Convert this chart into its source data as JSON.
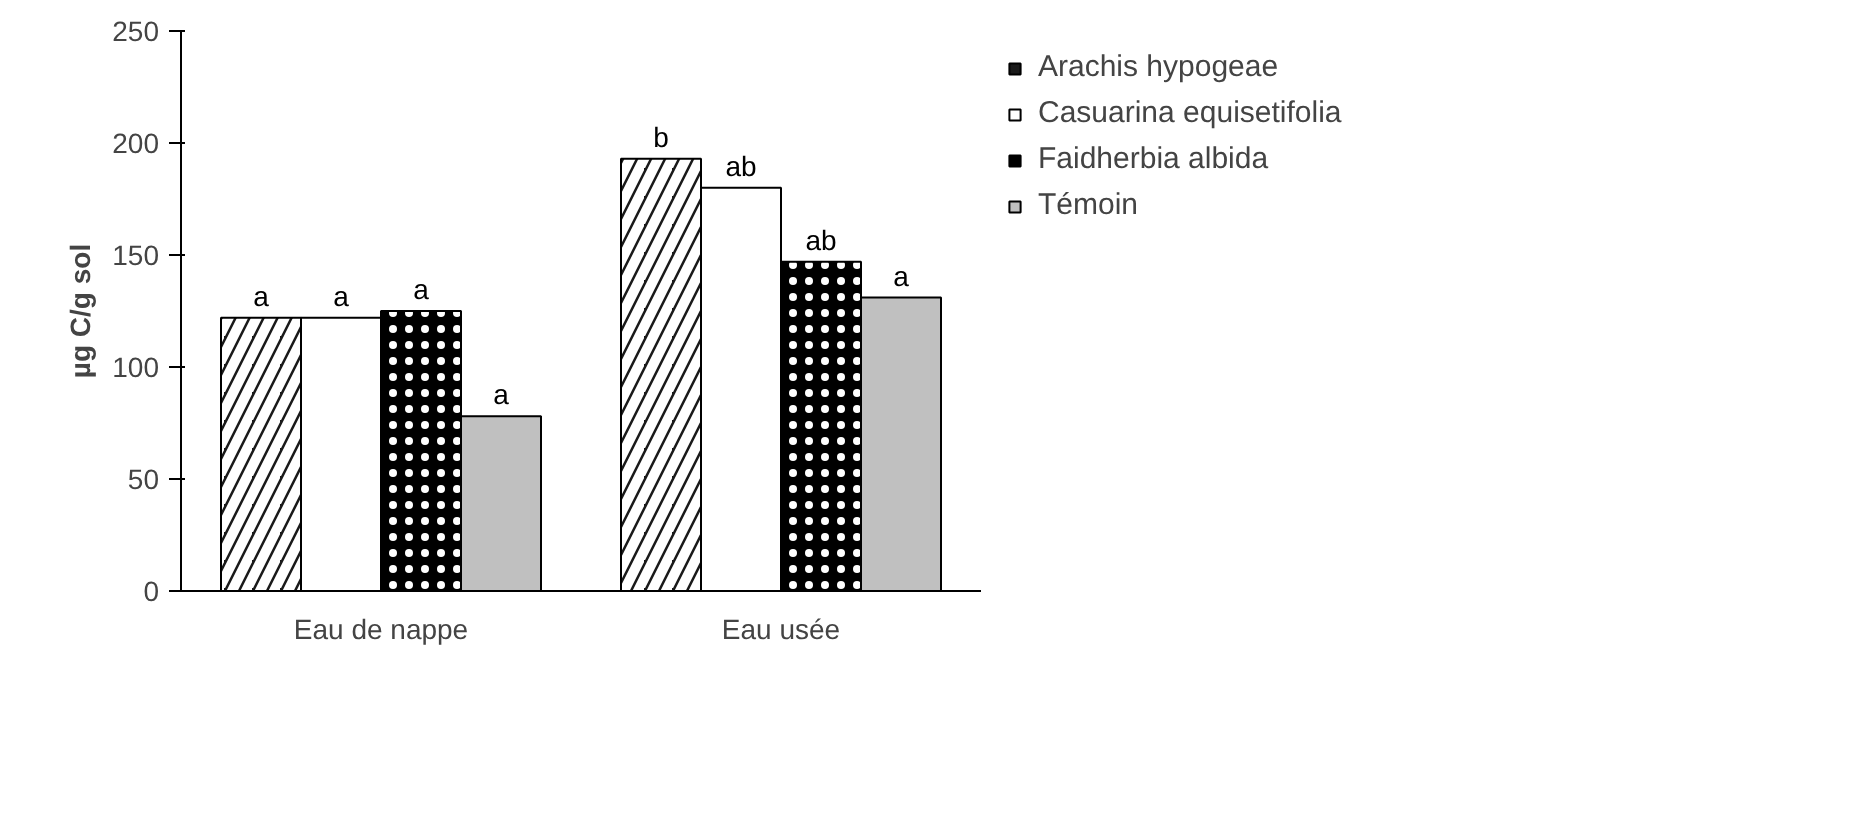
{
  "chart_data": {
    "type": "bar",
    "ylabel": "µg C/g sol",
    "categories": [
      "Eau de nappe",
      "Eau usée"
    ],
    "series": [
      {
        "name": "Arachis hypogeae",
        "color": "#1a1a1a",
        "values": [
          122,
          193
        ],
        "value_labels": [
          "a",
          "b"
        ]
      },
      {
        "name": "Casuarina equisetifolia",
        "color": "#ffffff",
        "values": [
          122,
          180
        ],
        "value_labels": [
          "a",
          "ab"
        ]
      },
      {
        "name": "Faidherbia albida",
        "color": "#000000",
        "values": [
          125,
          147
        ],
        "value_labels": [
          "a",
          "ab"
        ]
      },
      {
        "name": "Témoin",
        "color": "#c0c0c0",
        "values": [
          78,
          131
        ],
        "value_labels": [
          "a",
          "a"
        ]
      }
    ],
    "ylim": [
      0,
      250
    ],
    "yticks": [
      0,
      50,
      100,
      150,
      200,
      250
    ],
    "grid": false,
    "legend": "right"
  }
}
